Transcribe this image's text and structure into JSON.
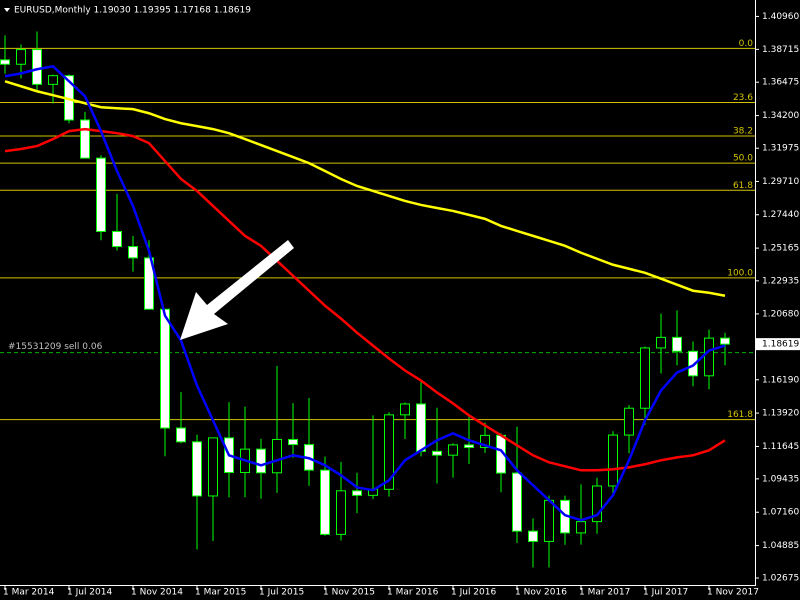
{
  "chart_data": {
    "type": "candlestick",
    "title": "EURUSD,Monthly  1.19030 1.19395 1.17168 1.18619",
    "categories": [
      "1 Mar 2014",
      null,
      null,
      null,
      "1 Jul 2014",
      null,
      null,
      null,
      "1 Nov 2014",
      null,
      null,
      null,
      "1 Mar 2015",
      null,
      null,
      null,
      "1 Jul 2015",
      null,
      null,
      null,
      "1 Nov 2015",
      null,
      null,
      null,
      "1 Mar 2016",
      null,
      null,
      null,
      "1 Jul 2016",
      null,
      null,
      null,
      "1 Nov 2016",
      null,
      null,
      null,
      "1 Mar 2017",
      null,
      null,
      null,
      "1 Jul 2017",
      null,
      null,
      null,
      "1 Nov 2017",
      null
    ],
    "open": [
      1.38,
      1.377,
      1.387,
      1.3633,
      1.3692,
      1.339,
      1.313,
      1.263,
      1.2527,
      1.245,
      1.21,
      1.129,
      1.1196,
      1.0827,
      1.1223,
      1.0987,
      1.1146,
      1.0985,
      1.1212,
      1.1177,
      1.1003,
      1.0565,
      1.0862,
      1.0831,
      1.0872,
      1.138,
      1.1454,
      1.1131,
      1.1105,
      1.1175,
      1.1157,
      1.124,
      1.0983,
      1.0587,
      1.0517,
      1.0797,
      1.0575,
      1.0652,
      1.0895,
      1.1242,
      1.1425,
      1.1836,
      1.1908,
      1.1813,
      1.1646,
      1.1903
    ],
    "high": [
      1.3967,
      1.3905,
      1.3993,
      1.37,
      1.37,
      1.3445,
      1.315,
      1.2886,
      1.26,
      1.257,
      1.21,
      1.1535,
      1.1245,
      1.1216,
      1.1467,
      1.1436,
      1.1216,
      1.1714,
      1.146,
      1.1495,
      1.1095,
      1.1059,
      1.0985,
      1.1376,
      1.1398,
      1.1464,
      1.1616,
      1.1428,
      1.1185,
      1.1366,
      1.1328,
      1.1254,
      1.13,
      1.0674,
      1.083,
      1.0829,
      1.0906,
      1.0951,
      1.1268,
      1.1446,
      1.1846,
      1.207,
      1.2092,
      1.188,
      1.1961,
      1.19395
    ],
    "low": [
      1.3705,
      1.3673,
      1.3586,
      1.3503,
      1.3368,
      1.3131,
      1.257,
      1.25,
      1.2356,
      1.21,
      1.1098,
      1.1186,
      1.0462,
      1.052,
      1.0817,
      1.0818,
      1.0808,
      1.0848,
      1.1087,
      1.0896,
      1.0556,
      1.0523,
      1.071,
      1.0806,
      1.0822,
      1.1215,
      1.1097,
      1.0912,
      1.0952,
      1.1045,
      1.1121,
      1.0852,
      1.0506,
      1.034,
      1.034,
      1.0494,
      1.0495,
      1.0569,
      1.0839,
      1.1118,
      1.1312,
      1.1662,
      1.1717,
      1.1575,
      1.1554,
      1.17168
    ],
    "close": [
      1.377,
      1.387,
      1.3633,
      1.3692,
      1.339,
      1.313,
      1.263,
      1.2527,
      1.245,
      1.21,
      1.129,
      1.1196,
      1.0827,
      1.1223,
      1.0987,
      1.1146,
      1.0985,
      1.1212,
      1.1177,
      1.1003,
      1.0565,
      1.0862,
      1.0831,
      1.0872,
      1.138,
      1.1454,
      1.1131,
      1.1105,
      1.1175,
      1.1157,
      1.124,
      1.0983,
      1.0587,
      1.0517,
      1.0797,
      1.0575,
      1.0652,
      1.0895,
      1.1242,
      1.1425,
      1.1836,
      1.1908,
      1.1813,
      1.1646,
      1.1903,
      1.18619
    ],
    "bull_color": "#000000",
    "bear_color": "#ffffff",
    "wick_color": "#00ff00",
    "series": [
      {
        "color": "#ffff00",
        "values": [
          1.3654,
          1.362,
          1.3586,
          1.3559,
          1.3532,
          1.3504,
          1.3477,
          1.347,
          1.3464,
          1.3436,
          1.3396,
          1.3368,
          1.3348,
          1.3328,
          1.33,
          1.326,
          1.3219,
          1.3178,
          1.3137,
          1.3096,
          1.3042,
          1.2988,
          1.294,
          1.2906,
          1.2872,
          1.2838,
          1.2811,
          1.279,
          1.277,
          1.2743,
          1.2716,
          1.2668,
          1.2634,
          1.26,
          1.2566,
          1.2532,
          1.2485,
          1.2444,
          1.2403,
          1.2376,
          1.2348,
          1.2308,
          1.2267,
          1.2226,
          1.2212,
          1.2192
        ]
      },
      {
        "color": "#ff0000",
        "values": [
          1.3178,
          1.3192,
          1.3212,
          1.326,
          1.3314,
          1.3328,
          1.3314,
          1.33,
          1.328,
          1.3232,
          1.311,
          1.2988,
          1.2906,
          1.2804,
          1.2702,
          1.26,
          1.2532,
          1.243,
          1.2328,
          1.2226,
          1.2124,
          1.2036,
          1.194,
          1.1852,
          1.1764,
          1.1682,
          1.1614,
          1.1532,
          1.1458,
          1.1376,
          1.1308,
          1.124,
          1.1172,
          1.1104,
          1.1056,
          1.1029,
          1.1002,
          1.1002,
          1.1009,
          1.1022,
          1.1043,
          1.107,
          1.109,
          1.1104,
          1.1138,
          1.1206
        ]
      },
      {
        "color": "#0000ff",
        "values": [
          1.3688,
          1.3708,
          1.3736,
          1.3756,
          1.3654,
          1.3552,
          1.3314,
          1.3042,
          1.2804,
          1.2498,
          1.2056,
          1.1886,
          1.158,
          1.1342,
          1.1104,
          1.107,
          1.1036,
          1.107,
          1.1104,
          1.1084,
          1.1036,
          1.0968,
          1.0886,
          1.0866,
          1.0934,
          1.107,
          1.1138,
          1.1206,
          1.1254,
          1.1206,
          1.1172,
          1.1138,
          1.1002,
          1.09,
          1.0798,
          1.0696,
          1.0662,
          1.0696,
          1.0832,
          1.107,
          1.1342,
          1.1546,
          1.1668,
          1.1716,
          1.1818,
          1.1852
        ]
      }
    ],
    "fib_color": "#d4c400",
    "fib_levels": [
      {
        "label": "0.0",
        "value": 1.3878
      },
      {
        "label": "23.6",
        "value": 1.3509
      },
      {
        "label": "38.2",
        "value": 1.3281
      },
      {
        "label": "50.0",
        "value": 1.3096
      },
      {
        "label": "61.8",
        "value": 1.2911
      },
      {
        "label": "100.0",
        "value": 1.2314
      },
      {
        "label": "161.8",
        "value": 1.1347
      }
    ],
    "order_line": {
      "label": "#15531209 sell 0.06",
      "value": 1.1804,
      "color": "#00b000"
    },
    "last_price": 1.18619,
    "ylim": [
      1.02199,
      1.4208
    ],
    "yticks": [
      {
        "value": 1.4096,
        "label": "1.40960"
      },
      1.38715,
      1.36475,
      {
        "value": 1.342,
        "label": "1.34200"
      },
      1.31975,
      {
        "value": 1.2971,
        "label": "1.29710"
      },
      {
        "value": 1.2744,
        "label": "1.27440"
      },
      1.25165,
      1.22935,
      {
        "value": 1.2068,
        "label": "1.20680"
      },
      {
        "value": 1.1619,
        "label": "1.16190"
      },
      {
        "value": 1.1392,
        "label": "1.13920"
      },
      1.11645,
      1.09435,
      {
        "value": 1.0716,
        "label": "1.07160"
      },
      1.04885,
      1.02675
    ],
    "grid": false
  }
}
